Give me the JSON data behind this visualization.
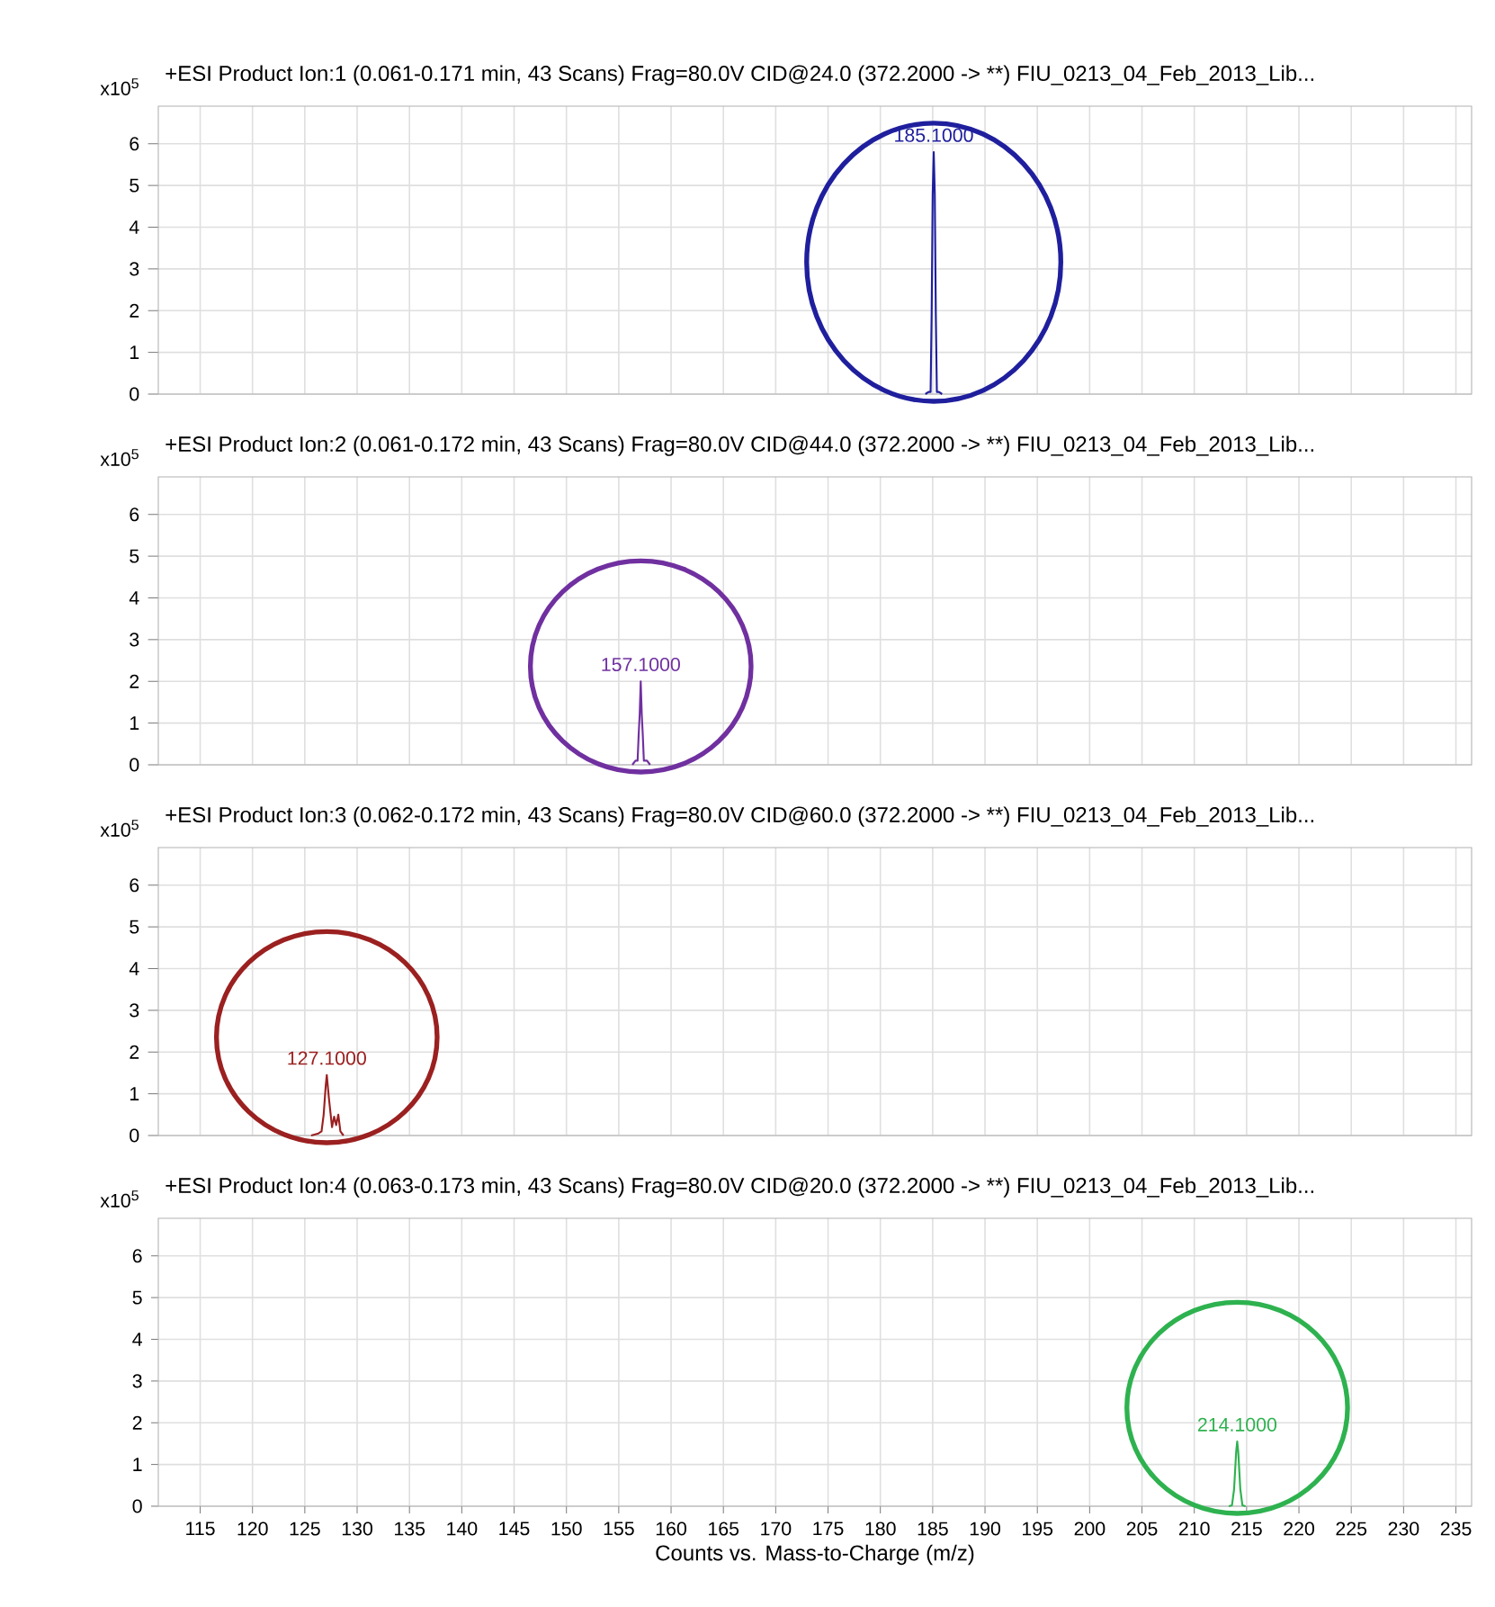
{
  "chart_data": [
    {
      "type": "line",
      "title": "+ESI Product Ion:1 (0.061-0.171 min, 43 Scans) Frag=80.0V CID@24.0 (372.2000 -> **) FIU_0213_04_Feb_2013_Lib...",
      "ylabel": "x10$^{5}$",
      "xlim": [
        111,
        236.5
      ],
      "ylim": [
        0,
        6.9
      ],
      "xticks": [
        115,
        120,
        125,
        130,
        135,
        140,
        145,
        150,
        155,
        160,
        165,
        170,
        175,
        180,
        185,
        190,
        195,
        200,
        205,
        210,
        215,
        220,
        225,
        230,
        235
      ],
      "yticks": [
        0,
        1,
        2,
        3,
        4,
        5,
        6
      ],
      "grid": true,
      "tick_labels": "y",
      "series": [
        {
          "color": "#1f1f9e",
          "x": [
            184.3,
            184.6,
            184.8,
            184.9,
            185.0,
            185.1,
            185.2,
            185.3,
            185.4,
            185.6,
            185.9
          ],
          "values": [
            0,
            0.05,
            0.05,
            1.9,
            4.8,
            5.8,
            4.8,
            1.9,
            0.05,
            0.05,
            0
          ]
        }
      ],
      "annotations": [
        {
          "text": "185.1000",
          "x": 185.1,
          "y": 5.8
        }
      ]
    },
    {
      "type": "line",
      "title": "+ESI Product Ion:2 (0.061-0.172 min, 43 Scans) Frag=80.0V CID@44.0 (372.2000 -> **) FIU_0213_04_Feb_2013_Lib...",
      "ylabel": "x10$^{5}$",
      "xlim": [
        111,
        236.5
      ],
      "ylim": [
        0,
        6.9
      ],
      "xticks": [
        115,
        120,
        125,
        130,
        135,
        140,
        145,
        150,
        155,
        160,
        165,
        170,
        175,
        180,
        185,
        190,
        195,
        200,
        205,
        210,
        215,
        220,
        225,
        230,
        235
      ],
      "yticks": [
        0,
        1,
        2,
        3,
        4,
        5,
        6
      ],
      "grid": true,
      "tick_labels": "y",
      "series": [
        {
          "color": "#7030a0",
          "x": [
            156.3,
            156.6,
            156.8,
            156.9,
            157.0,
            157.1,
            157.2,
            157.3,
            157.4,
            157.7,
            158.0
          ],
          "values": [
            0,
            0.1,
            0.1,
            0.7,
            1.2,
            2.0,
            1.2,
            0.7,
            0.1,
            0.1,
            0
          ]
        }
      ],
      "annotations": [
        {
          "text": "157.1000",
          "x": 157.1,
          "y": 2.0
        }
      ]
    },
    {
      "type": "line",
      "title": "+ESI Product Ion:3 (0.062-0.172 min, 43 Scans) Frag=80.0V CID@60.0 (372.2000 -> **) FIU_0213_04_Feb_2013_Lib...",
      "ylabel": "x10$^{5}$",
      "xlim": [
        111,
        236.5
      ],
      "ylim": [
        0,
        6.9
      ],
      "xticks": [
        115,
        120,
        125,
        130,
        135,
        140,
        145,
        150,
        155,
        160,
        165,
        170,
        175,
        180,
        185,
        190,
        195,
        200,
        205,
        210,
        215,
        220,
        225,
        230,
        235
      ],
      "yticks": [
        0,
        1,
        2,
        3,
        4,
        5,
        6
      ],
      "grid": true,
      "tick_labels": "y",
      "series": [
        {
          "color": "#9b2020",
          "x": [
            125.6,
            126.3,
            126.6,
            126.8,
            127.0,
            127.1,
            127.3,
            127.6,
            127.8,
            128.0,
            128.2,
            128.4,
            128.7
          ],
          "values": [
            0,
            0.05,
            0.1,
            0.5,
            1.2,
            1.45,
            0.9,
            0.2,
            0.45,
            0.25,
            0.5,
            0.1,
            0
          ]
        }
      ],
      "annotations": [
        {
          "text": "127.1000",
          "x": 127.1,
          "y": 1.45
        }
      ]
    },
    {
      "type": "line",
      "title": "+ESI Product Ion:4 (0.063-0.173 min, 43 Scans) Frag=80.0V CID@20.0 (372.2000 -> **) FIU_0213_04_Feb_2013_Lib...",
      "ylabel": "x10$^{5}$",
      "xlabel": "Counts vs. Mass-to-Charge (m/z)",
      "xlim": [
        111,
        236.5
      ],
      "ylim": [
        0,
        6.9
      ],
      "xticks": [
        115,
        120,
        125,
        130,
        135,
        140,
        145,
        150,
        155,
        160,
        165,
        170,
        175,
        180,
        185,
        190,
        195,
        200,
        205,
        210,
        215,
        220,
        225,
        230,
        235
      ],
      "yticks": [
        0,
        1,
        2,
        3,
        4,
        5,
        6
      ],
      "grid": true,
      "series": [
        {
          "color": "#2eb24f",
          "x": [
            213.3,
            213.6,
            213.8,
            214.0,
            214.1,
            214.2,
            214.4,
            214.6,
            214.9
          ],
          "values": [
            0,
            0.02,
            0.4,
            1.3,
            1.55,
            1.3,
            0.4,
            0.02,
            0
          ]
        }
      ],
      "annotations": [
        {
          "text": "214.1000",
          "x": 214.1,
          "y": 1.55
        }
      ]
    }
  ]
}
